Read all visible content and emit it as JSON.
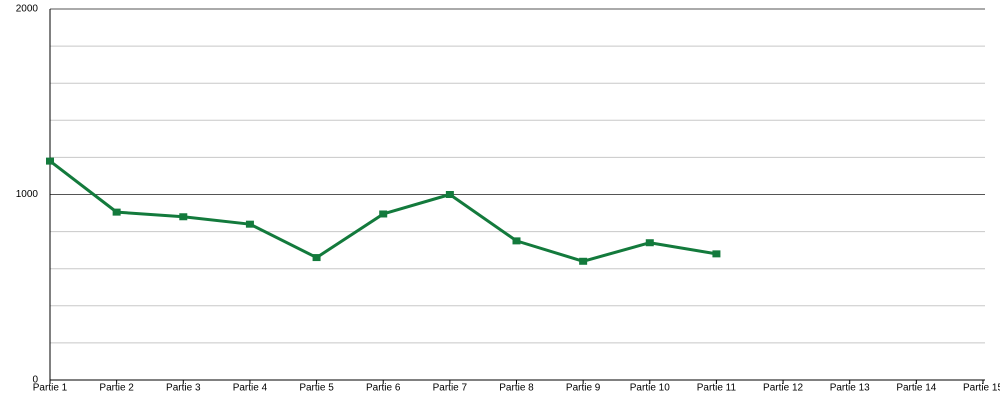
{
  "chart_data": {
    "type": "line",
    "categories": [
      "Partie 1",
      "Partie 2",
      "Partie 3",
      "Partie 4",
      "Partie 5",
      "Partie 6",
      "Partie 7",
      "Partie 8",
      "Partie 9",
      "Partie 10",
      "Partie 11",
      "Partie 12",
      "Partie 13",
      "Partie 14",
      "Partie 15"
    ],
    "series": [
      {
        "color": "#137a3c",
        "values": [
          1180,
          905,
          880,
          840,
          660,
          895,
          1000,
          750,
          640,
          740,
          680,
          null,
          null,
          null,
          null
        ]
      }
    ],
    "ylim": [
      0,
      2000
    ],
    "yticks": [
      0,
      1000,
      2000
    ],
    "minor_yticks": [
      200,
      400,
      600,
      800,
      1200,
      1400,
      1600,
      1800
    ],
    "grid": true
  }
}
